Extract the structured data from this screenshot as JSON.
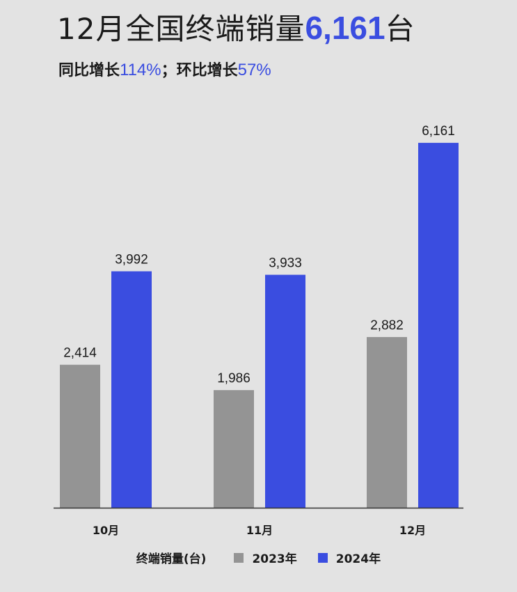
{
  "header": {
    "title_prefix": "12月全国终端销量",
    "title_value": "6,161",
    "title_suffix": "台",
    "yoy_label": "同比增长",
    "yoy_value": "114%",
    "sep": "；",
    "mom_label": "环比增长",
    "mom_value": "57%"
  },
  "colors": {
    "accent": "#3a4de0",
    "series_2023": "#949494",
    "series_2024": "#3a4de0",
    "axis": "#333333",
    "background": "#e3e3e3"
  },
  "chart_data": {
    "type": "bar",
    "categories": [
      "10月",
      "11月",
      "12月"
    ],
    "series": [
      {
        "name": "2023年",
        "values": [
          2414,
          1986,
          2882
        ],
        "labels": [
          "2,414",
          "1,986",
          "2,882"
        ]
      },
      {
        "name": "2024年",
        "values": [
          3992,
          3933,
          6161
        ],
        "labels": [
          "3,992",
          "3,933",
          "6,161"
        ]
      }
    ],
    "ylim": [
      0,
      6750
    ],
    "grid": false,
    "legend_title": "终端销量(台)",
    "legend_position": "bottom"
  }
}
